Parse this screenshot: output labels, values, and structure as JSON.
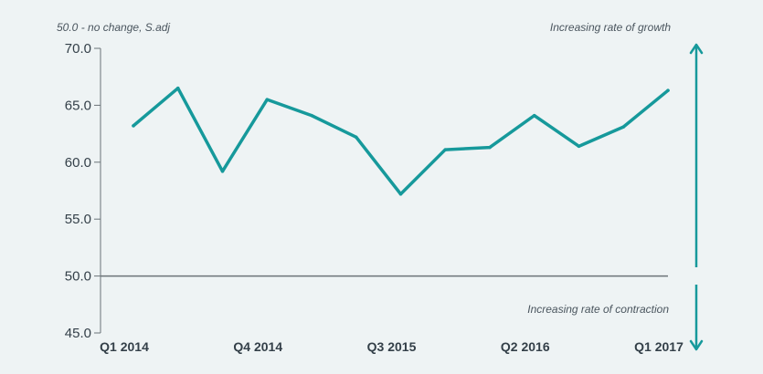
{
  "chart_data": {
    "type": "line",
    "ylabel": "50.0 - no change, S.adj",
    "annotations": {
      "top": "Increasing rate of growth",
      "bottom": "Increasing rate of contraction"
    },
    "ylim": [
      45,
      70
    ],
    "yticks": [
      "70.0",
      "65.0",
      "60.0",
      "55.0",
      "50.0",
      "45.0"
    ],
    "ytick_values": [
      70,
      65,
      60,
      55,
      50,
      45
    ],
    "xtick_labels": [
      "Q1 2014",
      "Q4 2014",
      "Q3 2015",
      "Q2 2016",
      "Q1 2017"
    ],
    "xtick_indices": [
      0,
      3,
      6,
      9,
      12
    ],
    "baseline": 50,
    "grid": false,
    "series": [
      {
        "color": "#16999b",
        "x": [
          "Q1 2014",
          "Q2 2014",
          "Q3 2014",
          "Q4 2014",
          "Q1 2015",
          "Q2 2015",
          "Q3 2015",
          "Q4 2015",
          "Q1 2016",
          "Q2 2016",
          "Q3 2016",
          "Q4 2016",
          "Q1 2017"
        ],
        "values": [
          63.2,
          66.5,
          59.2,
          65.5,
          64.1,
          62.2,
          57.2,
          61.1,
          61.3,
          64.1,
          61.4,
          63.1,
          66.3
        ]
      }
    ],
    "colors": {
      "line": "#16999b",
      "arrow": "#16999b",
      "axis": "#6b7378",
      "text": "#333f48",
      "background": "#eef3f4"
    }
  }
}
